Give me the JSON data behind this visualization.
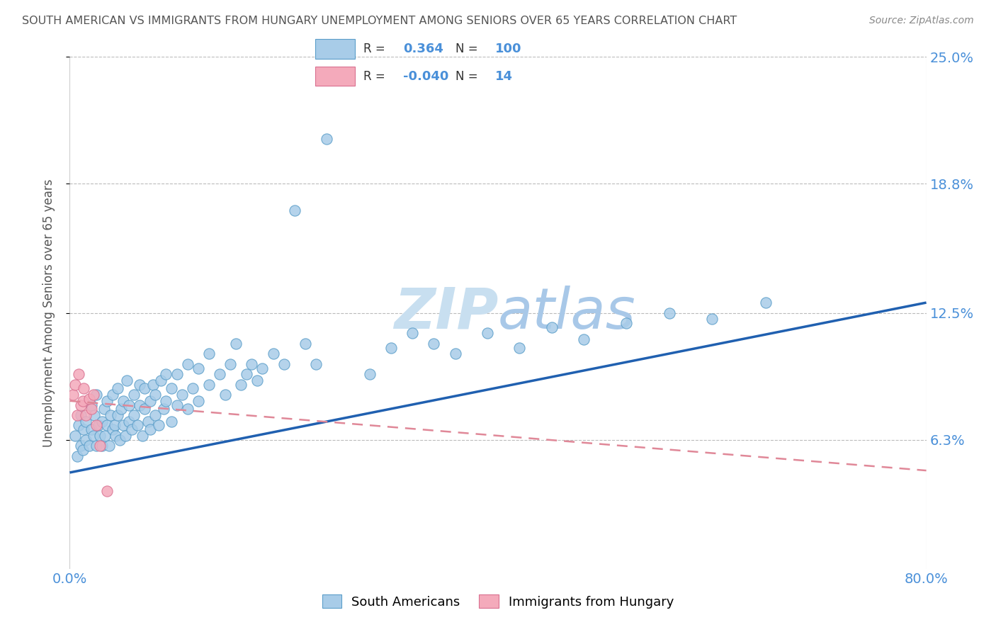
{
  "title": "SOUTH AMERICAN VS IMMIGRANTS FROM HUNGARY UNEMPLOYMENT AMONG SENIORS OVER 65 YEARS CORRELATION CHART",
  "source": "Source: ZipAtlas.com",
  "ylabel": "Unemployment Among Seniors over 65 years",
  "xmin": 0.0,
  "xmax": 0.8,
  "ymin": 0.0,
  "ymax": 0.25,
  "ytick_vals": [
    0.063,
    0.125,
    0.188,
    0.25
  ],
  "ytick_labels": [
    "6.3%",
    "12.5%",
    "18.8%",
    "25.0%"
  ],
  "r_south_american": 0.364,
  "n_south_american": 100,
  "r_hungary": -0.04,
  "n_hungary": 14,
  "blue_fill": "#A8CCE8",
  "blue_edge": "#5B9EC9",
  "pink_fill": "#F4AABB",
  "pink_edge": "#D97090",
  "blue_line_color": "#2060B0",
  "pink_line_color": "#E08898",
  "title_color": "#555555",
  "source_color": "#888888",
  "label_color": "#4A90D9",
  "watermark_color": "#C8DFF0",
  "legend_label_blue": "South Americans",
  "legend_label_pink": "Immigrants from Hungary",
  "sa_x": [
    0.005,
    0.007,
    0.008,
    0.01,
    0.01,
    0.012,
    0.013,
    0.015,
    0.015,
    0.018,
    0.02,
    0.02,
    0.022,
    0.023,
    0.025,
    0.025,
    0.027,
    0.028,
    0.03,
    0.03,
    0.032,
    0.033,
    0.035,
    0.035,
    0.037,
    0.038,
    0.04,
    0.04,
    0.042,
    0.043,
    0.045,
    0.045,
    0.047,
    0.048,
    0.05,
    0.05,
    0.052,
    0.053,
    0.055,
    0.055,
    0.058,
    0.06,
    0.06,
    0.063,
    0.065,
    0.065,
    0.068,
    0.07,
    0.07,
    0.073,
    0.075,
    0.075,
    0.078,
    0.08,
    0.08,
    0.083,
    0.085,
    0.088,
    0.09,
    0.09,
    0.095,
    0.095,
    0.1,
    0.1,
    0.105,
    0.11,
    0.11,
    0.115,
    0.12,
    0.12,
    0.13,
    0.13,
    0.14,
    0.145,
    0.15,
    0.155,
    0.16,
    0.165,
    0.17,
    0.175,
    0.18,
    0.19,
    0.2,
    0.21,
    0.22,
    0.23,
    0.24,
    0.28,
    0.3,
    0.32,
    0.34,
    0.36,
    0.39,
    0.42,
    0.45,
    0.48,
    0.52,
    0.56,
    0.6,
    0.65
  ],
  "sa_y": [
    0.065,
    0.055,
    0.07,
    0.06,
    0.075,
    0.058,
    0.068,
    0.063,
    0.072,
    0.06,
    0.068,
    0.08,
    0.065,
    0.075,
    0.06,
    0.085,
    0.07,
    0.065,
    0.072,
    0.06,
    0.078,
    0.065,
    0.07,
    0.082,
    0.06,
    0.075,
    0.068,
    0.085,
    0.07,
    0.065,
    0.075,
    0.088,
    0.063,
    0.078,
    0.07,
    0.082,
    0.065,
    0.092,
    0.072,
    0.08,
    0.068,
    0.075,
    0.085,
    0.07,
    0.08,
    0.09,
    0.065,
    0.078,
    0.088,
    0.072,
    0.082,
    0.068,
    0.09,
    0.075,
    0.085,
    0.07,
    0.092,
    0.078,
    0.082,
    0.095,
    0.072,
    0.088,
    0.08,
    0.095,
    0.085,
    0.078,
    0.1,
    0.088,
    0.082,
    0.098,
    0.09,
    0.105,
    0.095,
    0.085,
    0.1,
    0.11,
    0.09,
    0.095,
    0.1,
    0.092,
    0.098,
    0.105,
    0.1,
    0.175,
    0.11,
    0.1,
    0.21,
    0.095,
    0.108,
    0.115,
    0.11,
    0.105,
    0.115,
    0.108,
    0.118,
    0.112,
    0.12,
    0.125,
    0.122,
    0.13
  ],
  "hu_x": [
    0.003,
    0.005,
    0.007,
    0.008,
    0.01,
    0.012,
    0.013,
    0.015,
    0.018,
    0.02,
    0.022,
    0.025,
    0.028,
    0.035
  ],
  "hu_y": [
    0.085,
    0.09,
    0.075,
    0.095,
    0.08,
    0.082,
    0.088,
    0.075,
    0.083,
    0.078,
    0.085,
    0.07,
    0.06,
    0.038
  ],
  "blue_line_x0": 0.0,
  "blue_line_y0": 0.047,
  "blue_line_x1": 0.8,
  "blue_line_y1": 0.13,
  "pink_line_x0": 0.0,
  "pink_line_y0": 0.082,
  "pink_line_x1": 0.8,
  "pink_line_y1": 0.048
}
